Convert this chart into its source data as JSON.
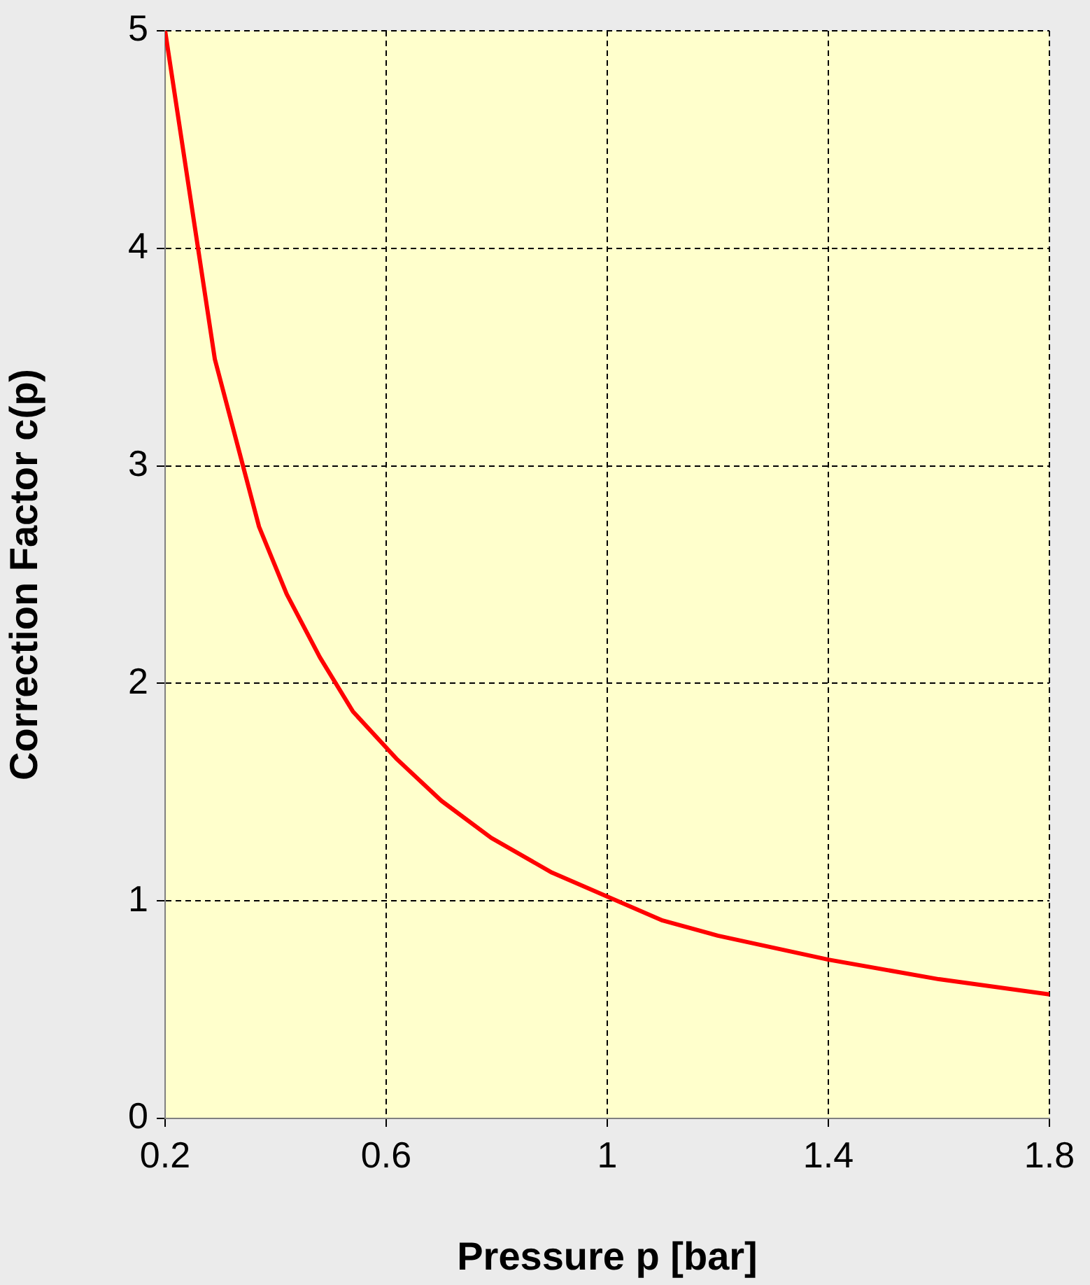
{
  "chart_data": {
    "type": "line",
    "xlabel": "Pressure p [bar]",
    "ylabel": "Correction Factor c(p)",
    "x": [
      0.2,
      0.29,
      0.37,
      0.42,
      0.48,
      0.54,
      0.62,
      0.7,
      0.79,
      0.9,
      1.0,
      1.1,
      1.2,
      1.4,
      1.6,
      1.8
    ],
    "values": [
      5.0,
      3.49,
      2.72,
      2.41,
      2.12,
      1.87,
      1.65,
      1.46,
      1.29,
      1.13,
      1.02,
      0.91,
      0.84,
      0.73,
      0.64,
      0.57
    ],
    "color": "#ff0000",
    "xlim": [
      0.2,
      1.8
    ],
    "ylim": [
      0,
      5
    ],
    "xticks": [
      0.2,
      0.6,
      1,
      1.4,
      1.8
    ],
    "yticks": [
      0,
      1,
      2,
      3,
      4,
      5
    ],
    "grid": true
  }
}
